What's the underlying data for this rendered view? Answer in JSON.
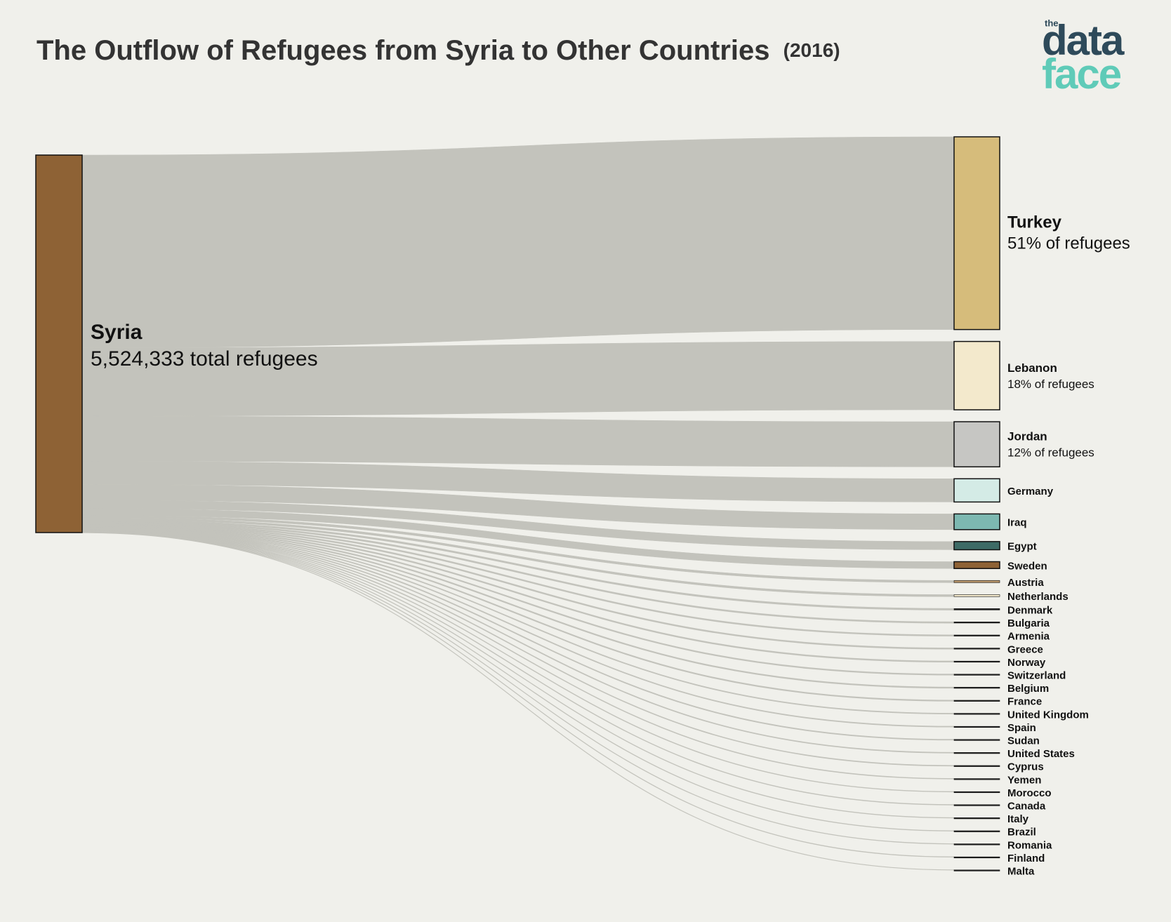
{
  "chart_data": {
    "type": "sankey",
    "title": "The Outflow of Refugees from Syria to Other Countries",
    "subtitle": "(2016)",
    "logo": {
      "small": "the",
      "line1": "data",
      "line2": "face"
    },
    "source": {
      "name": "Syria",
      "value": 5524333,
      "value_label": "5,524,333 total refugees",
      "color": "#8e6235"
    },
    "link_color": "#c3c3bc",
    "targets": [
      {
        "name": "Turkey",
        "value": 2820000,
        "value_label": "51% of refugees",
        "color": "#d6bc7b"
      },
      {
        "name": "Lebanon",
        "value": 1000000,
        "value_label": "18% of refugees",
        "color": "#f3e9cc"
      },
      {
        "name": "Jordan",
        "value": 660000,
        "value_label": "12% of refugees",
        "color": "#c6c6c3"
      },
      {
        "name": "Germany",
        "value": 340000,
        "color": "#d4ebe6"
      },
      {
        "name": "Iraq",
        "value": 230000,
        "color": "#7db8b1"
      },
      {
        "name": "Egypt",
        "value": 120000,
        "color": "#3d6b66"
      },
      {
        "name": "Sweden",
        "value": 100000,
        "color": "#8e6235"
      },
      {
        "name": "Austria",
        "value": 33000,
        "color": "#b5946a"
      },
      {
        "name": "Netherlands",
        "value": 30000,
        "color": "#f0e6c8"
      },
      {
        "name": "Denmark",
        "value": 20000,
        "color": "#222222"
      },
      {
        "name": "Bulgaria",
        "value": 17000,
        "color": "#222222"
      },
      {
        "name": "Armenia",
        "value": 15000,
        "color": "#222222"
      },
      {
        "name": "Greece",
        "value": 15000,
        "color": "#222222"
      },
      {
        "name": "Norway",
        "value": 14000,
        "color": "#222222"
      },
      {
        "name": "Switzerland",
        "value": 13000,
        "color": "#222222"
      },
      {
        "name": "Belgium",
        "value": 13000,
        "color": "#222222"
      },
      {
        "name": "France",
        "value": 12000,
        "color": "#222222"
      },
      {
        "name": "United Kingdom",
        "value": 9000,
        "color": "#222222"
      },
      {
        "name": "Spain",
        "value": 9000,
        "color": "#222222"
      },
      {
        "name": "Sudan",
        "value": 9000,
        "color": "#222222"
      },
      {
        "name": "United States",
        "value": 8000,
        "color": "#222222"
      },
      {
        "name": "Cyprus",
        "value": 7000,
        "color": "#222222"
      },
      {
        "name": "Yemen",
        "value": 6000,
        "color": "#222222"
      },
      {
        "name": "Morocco",
        "value": 5000,
        "color": "#222222"
      },
      {
        "name": "Canada",
        "value": 5000,
        "color": "#222222"
      },
      {
        "name": "Italy",
        "value": 4000,
        "color": "#222222"
      },
      {
        "name": "Brazil",
        "value": 4000,
        "color": "#222222"
      },
      {
        "name": "Romania",
        "value": 3000,
        "color": "#222222"
      },
      {
        "name": "Finland",
        "value": 3000,
        "color": "#222222"
      },
      {
        "name": "Malta",
        "value": 2000,
        "color": "#222222"
      }
    ]
  }
}
